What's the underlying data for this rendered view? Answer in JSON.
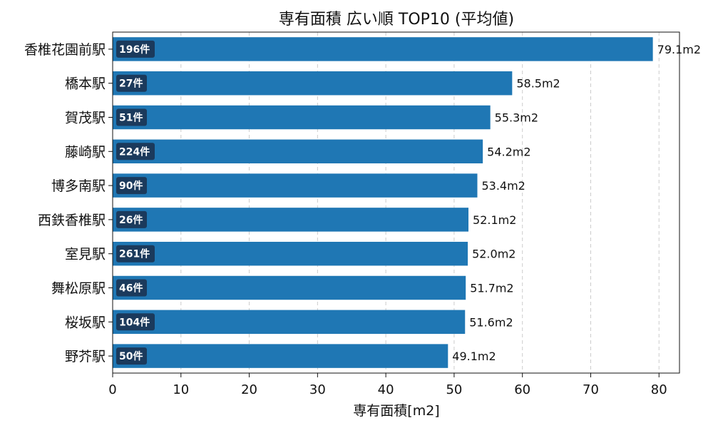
{
  "chart_data": {
    "type": "bar",
    "orientation": "horizontal",
    "title": "専有面積 広い順 TOP10 (平均値)",
    "xlabel": "専有面積[m2]",
    "ylabel": "",
    "xlim": [
      0,
      83
    ],
    "xticks": [
      0,
      10,
      20,
      30,
      40,
      50,
      60,
      70,
      80
    ],
    "grid": "x-dashed",
    "bar_color": "#1f77b4",
    "badge_color": "#1b3a5c",
    "categories": [
      "香椎花園前駅",
      "橋本駅",
      "賀茂駅",
      "藤崎駅",
      "博多南駅",
      "西鉄香椎駅",
      "室見駅",
      "舞松原駅",
      "桜坂駅",
      "野芥駅"
    ],
    "values": [
      79.1,
      58.5,
      55.3,
      54.2,
      53.4,
      52.1,
      52.0,
      51.7,
      51.6,
      49.1
    ],
    "value_labels": [
      "79.1m2",
      "58.5m2",
      "55.3m2",
      "54.2m2",
      "53.4m2",
      "52.1m2",
      "52.0m2",
      "51.7m2",
      "51.6m2",
      "49.1m2"
    ],
    "count_labels": [
      "196件",
      "27件",
      "51件",
      "224件",
      "90件",
      "26件",
      "261件",
      "46件",
      "104件",
      "50件"
    ]
  }
}
